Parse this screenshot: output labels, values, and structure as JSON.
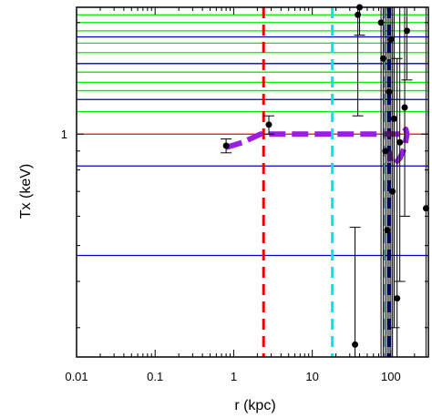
{
  "chart_data": {
    "type": "scatter",
    "title": "",
    "xlabel": "r (kpc)",
    "ylabel": "Tx (keV)",
    "x_scale": "log",
    "y_scale": "log",
    "xlim": [
      0.01,
      300
    ],
    "ylim": [
      0.25,
      2.2
    ],
    "x_tick_labels": [
      "0.01",
      "0.1",
      "1",
      "10",
      "100"
    ],
    "x_major_ticks": [
      0.01,
      0.1,
      1,
      10,
      100
    ],
    "y_tick_labels": [
      "1"
    ],
    "y_major_ticks": [
      1
    ],
    "grid": false,
    "colors": {
      "green_lines": "#00ee00",
      "blue_lines": "#0000cc",
      "red_line": "#ff0000",
      "red_dashed": "#ee0000",
      "cyan_dashed": "#00e5ee",
      "purple_curve": "#9a1ee6",
      "points": "#000000"
    },
    "horizontal_lines": [
      {
        "color": "green",
        "y": 2.1
      },
      {
        "color": "green",
        "y": 2.0
      },
      {
        "color": "green",
        "y": 1.9
      },
      {
        "color": "blue",
        "y": 1.83
      },
      {
        "color": "green",
        "y": 1.76
      },
      {
        "color": "green",
        "y": 1.66
      },
      {
        "color": "blue",
        "y": 1.55
      },
      {
        "color": "green",
        "y": 1.47
      },
      {
        "color": "green",
        "y": 1.38
      },
      {
        "color": "green",
        "y": 1.31
      },
      {
        "color": "blue",
        "y": 1.24
      },
      {
        "color": "green",
        "y": 1.15
      },
      {
        "color": "red",
        "y": 1.0
      },
      {
        "color": "blue",
        "y": 0.82
      },
      {
        "color": "blue",
        "y": 0.47
      }
    ],
    "vertical_dashed_lines": [
      {
        "color": "red",
        "x": 2.4
      },
      {
        "color": "cyan",
        "x": 18
      },
      {
        "color": "cyan",
        "x": 82
      },
      {
        "color": "blue",
        "x": 95
      }
    ],
    "purple_curve": {
      "x": [
        0.8,
        1.3,
        2.2,
        3.5,
        6,
        10,
        20,
        40,
        70,
        100,
        140,
        155,
        160,
        150,
        130,
        110,
        100,
        95
      ],
      "y": [
        0.92,
        0.95,
        1.0,
        1.0,
        1.0,
        1.0,
        1.0,
        1.0,
        1.0,
        1.0,
        1.0,
        1.03,
        1.0,
        0.92,
        0.86,
        0.83,
        0.84,
        0.9
      ]
    },
    "points": [
      {
        "x": 0.8,
        "y": 0.93,
        "ylo": 0.89,
        "yhi": 0.97
      },
      {
        "x": 2.8,
        "y": 1.06,
        "ylo": 1.0,
        "yhi": 1.12
      },
      {
        "x": 35,
        "y": 0.27,
        "ylo": 0.25,
        "yhi": 0.56
      },
      {
        "x": 38,
        "y": 2.1,
        "ylo": 1.12,
        "yhi": 2.2
      },
      {
        "x": 40,
        "y": 2.2,
        "ylo": 1.85,
        "yhi": 2.2
      },
      {
        "x": 75,
        "y": 2.0,
        "ylo": 0.25,
        "yhi": 2.2
      },
      {
        "x": 80,
        "y": 1.6,
        "ylo": 0.25,
        "yhi": 2.2
      },
      {
        "x": 85,
        "y": 0.9,
        "ylo": 0.25,
        "yhi": 2.2
      },
      {
        "x": 90,
        "y": 0.55,
        "ylo": 0.25,
        "yhi": 2.2
      },
      {
        "x": 95,
        "y": 1.3,
        "ylo": 0.25,
        "yhi": 2.2
      },
      {
        "x": 100,
        "y": 1.8,
        "ylo": 0.25,
        "yhi": 2.2
      },
      {
        "x": 105,
        "y": 0.7,
        "ylo": 0.25,
        "yhi": 2.2
      },
      {
        "x": 110,
        "y": 1.1,
        "ylo": 0.3,
        "yhi": 2.2
      },
      {
        "x": 120,
        "y": 0.36,
        "ylo": 0.25,
        "yhi": 1.6
      },
      {
        "x": 130,
        "y": 0.95,
        "ylo": 0.4,
        "yhi": 2.2
      },
      {
        "x": 150,
        "y": 1.18,
        "ylo": 0.6,
        "yhi": 2.2
      },
      {
        "x": 160,
        "y": 1.9,
        "ylo": 1.4,
        "yhi": 2.2
      },
      {
        "x": 280,
        "y": 0.63,
        "ylo": 0.25,
        "yhi": 2.2
      }
    ]
  }
}
